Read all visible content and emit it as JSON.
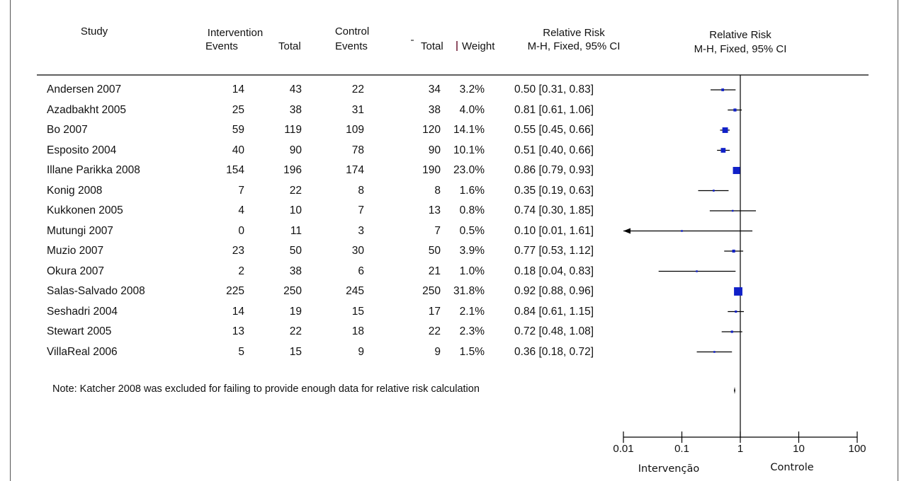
{
  "headers": {
    "study": "Study",
    "intervention": "Intervention",
    "int_events": "Events",
    "int_total": "Total",
    "control": "Control",
    "ctl_events": "Events",
    "ctl_total": "Total",
    "weight": "Weight",
    "rr_title": "Relative Risk",
    "rr_method": "M-H, Fixed, 95% CI",
    "plot_title": "Relative Risk",
    "plot_method": "M-H, Fixed, 95% CI"
  },
  "note": "Note: Katcher 2008 was excluded for failing to provide enough data for relative risk calculation",
  "colors": {
    "marker": "#1020c8",
    "line": "#000000"
  },
  "chart_data": {
    "type": "forest",
    "x_scale": "log",
    "xlim": [
      0.01,
      100
    ],
    "ticks": [
      "0.01",
      "0.1",
      "1",
      "10",
      "100"
    ],
    "x_left_label": "Intervenção",
    "x_right_label": "Controle",
    "rows": [
      {
        "study": "Andersen 2007",
        "int_events": "14",
        "int_total": "43",
        "ctl_events": "22",
        "ctl_total": "34",
        "weight": "3.2%",
        "rr_text": "0.50 [0.31, 0.83]",
        "rr": 0.5,
        "lo": 0.31,
        "hi": 0.83,
        "w": 3.2
      },
      {
        "study": "Azadbakht 2005",
        "int_events": "25",
        "int_total": "38",
        "ctl_events": "31",
        "ctl_total": "38",
        "weight": "4.0%",
        "rr_text": "0.81 [0.61, 1.06]",
        "rr": 0.81,
        "lo": 0.61,
        "hi": 1.06,
        "w": 4.0
      },
      {
        "study": "Bo 2007",
        "int_events": "59",
        "int_total": "119",
        "ctl_events": "109",
        "ctl_total": "120",
        "weight": "14.1%",
        "rr_text": "0.55 [0.45, 0.66]",
        "rr": 0.55,
        "lo": 0.45,
        "hi": 0.66,
        "w": 14.1
      },
      {
        "study": "Esposito 2004",
        "int_events": "40",
        "int_total": "90",
        "ctl_events": "78",
        "ctl_total": "90",
        "weight": "10.1%",
        "rr_text": "0.51 [0.40, 0.66]",
        "rr": 0.51,
        "lo": 0.4,
        "hi": 0.66,
        "w": 10.1
      },
      {
        "study": "Illane Parikka 2008",
        "int_events": "154",
        "int_total": "196",
        "ctl_events": "174",
        "ctl_total": "190",
        "weight": "23.0%",
        "rr_text": "0.86 [0.79, 0.93]",
        "rr": 0.86,
        "lo": 0.79,
        "hi": 0.93,
        "w": 23.0
      },
      {
        "study": "Konig 2008",
        "int_events": "7",
        "int_total": "22",
        "ctl_events": "8",
        "ctl_total": "8",
        "weight": "1.6%",
        "rr_text": "0.35 [0.19, 0.63]",
        "rr": 0.35,
        "lo": 0.19,
        "hi": 0.63,
        "w": 1.6
      },
      {
        "study": "Kukkonen 2005",
        "int_events": "4",
        "int_total": "10",
        "ctl_events": "7",
        "ctl_total": "13",
        "weight": "0.8%",
        "rr_text": "0.74 [0.30, 1.85]",
        "rr": 0.74,
        "lo": 0.3,
        "hi": 1.85,
        "w": 0.8
      },
      {
        "study": "Mutungi 2007",
        "int_events": "0",
        "int_total": "11",
        "ctl_events": "3",
        "ctl_total": "7",
        "weight": "0.5%",
        "rr_text": "0.10 [0.01, 1.61]",
        "rr": 0.1,
        "lo": 0.01,
        "hi": 1.61,
        "w": 0.5,
        "arrow_left": true
      },
      {
        "study": "Muzio 2007",
        "int_events": "23",
        "int_total": "50",
        "ctl_events": "30",
        "ctl_total": "50",
        "weight": "3.9%",
        "rr_text": "0.77 [0.53, 1.12]",
        "rr": 0.77,
        "lo": 0.53,
        "hi": 1.12,
        "w": 3.9
      },
      {
        "study": "Okura 2007",
        "int_events": "2",
        "int_total": "38",
        "ctl_events": "6",
        "ctl_total": "21",
        "weight": "1.0%",
        "rr_text": "0.18 [0.04, 0.83]",
        "rr": 0.18,
        "lo": 0.04,
        "hi": 0.83,
        "w": 1.0
      },
      {
        "study": "Salas-Salvado 2008",
        "int_events": "225",
        "int_total": "250",
        "ctl_events": "245",
        "ctl_total": "250",
        "weight": "31.8%",
        "rr_text": "0.92 [0.88, 0.96]",
        "rr": 0.92,
        "lo": 0.88,
        "hi": 0.96,
        "w": 31.8
      },
      {
        "study": "Seshadri 2004",
        "int_events": "14",
        "int_total": "19",
        "ctl_events": "15",
        "ctl_total": "17",
        "weight": "2.1%",
        "rr_text": "0.84 [0.61, 1.15]",
        "rr": 0.84,
        "lo": 0.61,
        "hi": 1.15,
        "w": 2.1
      },
      {
        "study": "Stewart 2005",
        "int_events": "13",
        "int_total": "22",
        "ctl_events": "18",
        "ctl_total": "22",
        "weight": "2.3%",
        "rr_text": "0.72 [0.48, 1.08]",
        "rr": 0.72,
        "lo": 0.48,
        "hi": 1.08,
        "w": 2.3
      },
      {
        "study": "VillaReal 2006",
        "int_events": "5",
        "int_total": "15",
        "ctl_events": "9",
        "ctl_total": "9",
        "weight": "1.5%",
        "rr_text": "0.36 [0.18, 0.72]",
        "rr": 0.36,
        "lo": 0.18,
        "hi": 0.72,
        "w": 1.5
      }
    ],
    "overall": {
      "rr": 0.8,
      "lo": 0.78,
      "hi": 0.82
    }
  }
}
